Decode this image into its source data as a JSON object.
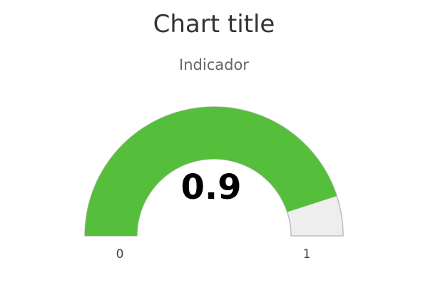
{
  "chart_data": {
    "type": "gauge",
    "title": "Chart title",
    "subtitle": "Indicador",
    "value": 0.9,
    "value_label": "0.9",
    "min": 0,
    "max": 1,
    "min_label": "0",
    "max_label": "1",
    "colors": {
      "value_fill": "#55bf3b",
      "background_fill": "#eeeeee",
      "border": "#bbbbbb"
    }
  }
}
